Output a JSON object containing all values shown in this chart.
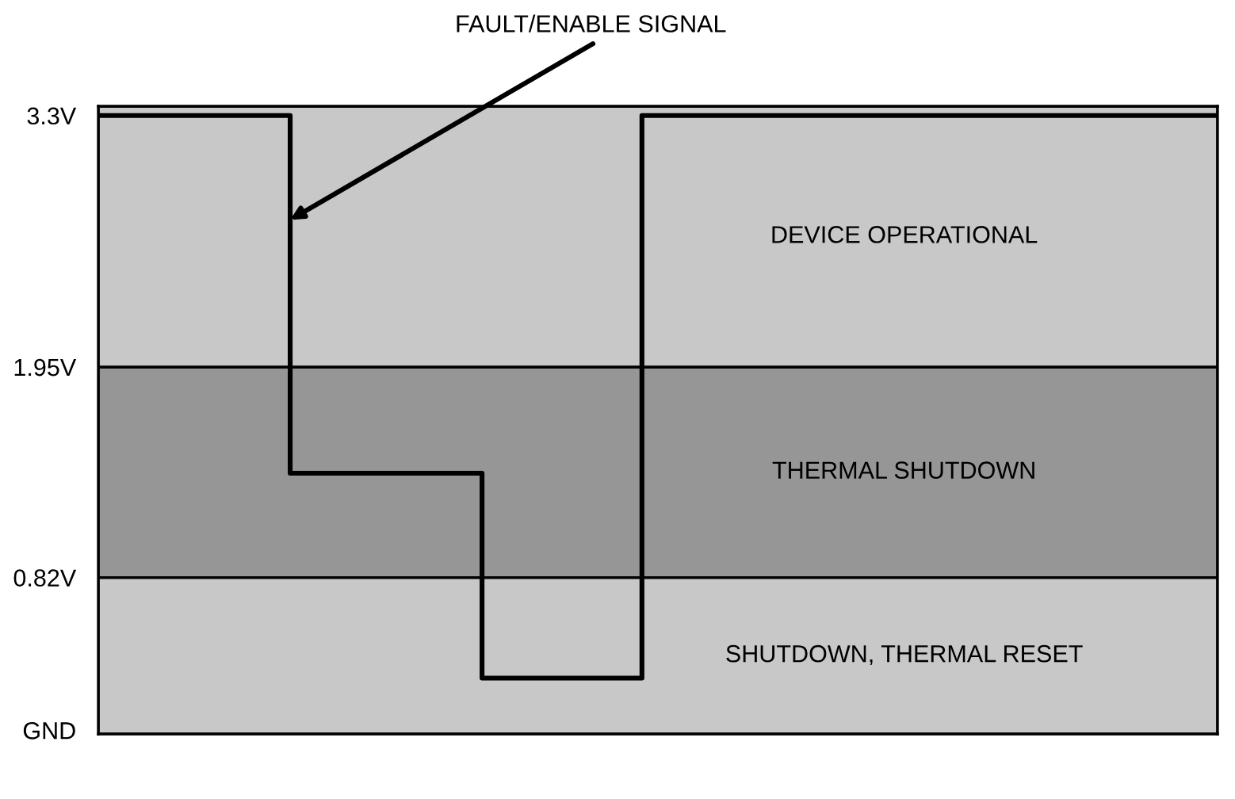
{
  "chart_data": {
    "type": "step",
    "categories": [
      null,
      null,
      null,
      null,
      null,
      null,
      null,
      null,
      null,
      null,
      null,
      null,
      null,
      null,
      null,
      null,
      null,
      null,
      null,
      null,
      null,
      null,
      null,
      null,
      null,
      null,
      null,
      null,
      null,
      null,
      null,
      null,
      null,
      null,
      null,
      null
    ],
    "series": [
      {
        "color": "#000000",
        "values": [
          3.3,
          3.3,
          3.3,
          3.3,
          3.3,
          3.3,
          1.38,
          1.38,
          1.38,
          1.38,
          1.38,
          1.38,
          0.28,
          0.28,
          0.28,
          0.28,
          0.28,
          3.3,
          3.3,
          3.3,
          3.3,
          3.3,
          3.3,
          3.3,
          3.3,
          3.3,
          3.3,
          3.3,
          3.3,
          3.3,
          3.3,
          3.3,
          3.3,
          3.3,
          3.3,
          3.3
        ]
      }
    ],
    "ylim": [
      -0.02,
      3.35
    ],
    "yticks": [
      {
        "value": 0,
        "label": "GND"
      },
      {
        "value": 0.82,
        "label": "0.82V"
      },
      {
        "value": 1.95,
        "label": "1.95V"
      },
      {
        "value": 3.3,
        "label": "3.3V"
      }
    ],
    "bands": [
      {
        "axis": "y",
        "from": -0.02,
        "to": 0.82,
        "label": "SHUTDOWN, THERMAL RESET",
        "color": "#c8c8c8"
      },
      {
        "axis": "y",
        "from": 0.82,
        "to": 1.95,
        "label": "THERMAL SHUTDOWN",
        "color": "#969696"
      },
      {
        "axis": "y",
        "from": 1.95,
        "to": 3.35,
        "label": "DEVICE OPERATIONAL",
        "color": "#c8c8c8"
      }
    ],
    "annotations": [
      "FAULT/ENABLE SIGNAL"
    ],
    "tick_labels": "y",
    "grid": false,
    "legend": false
  }
}
